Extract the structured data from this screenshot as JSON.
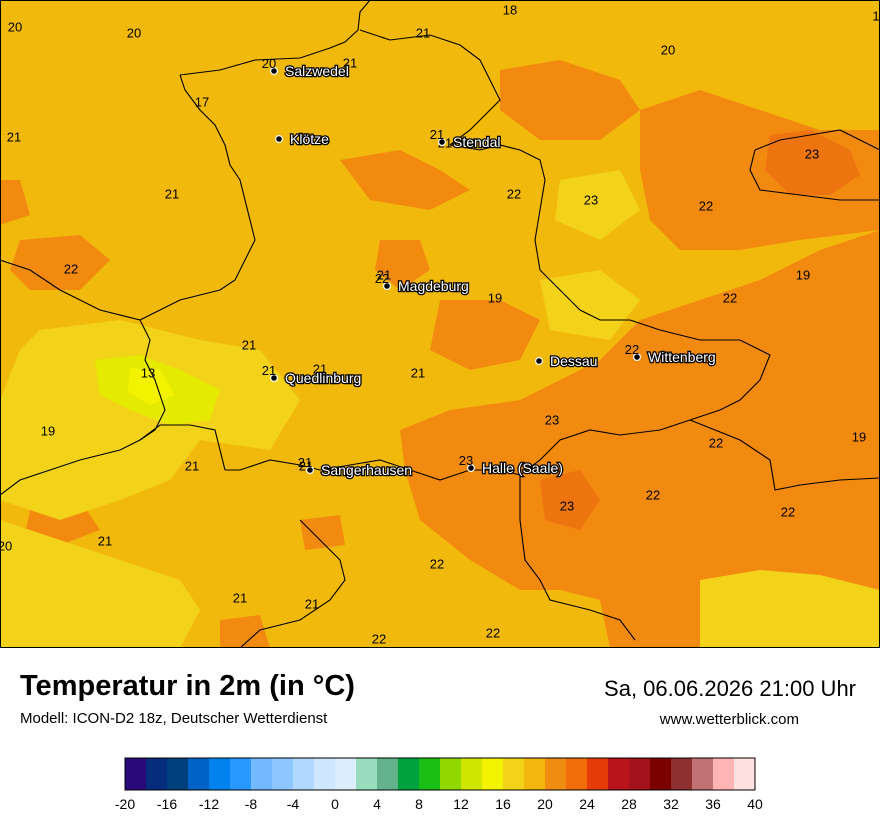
{
  "map": {
    "cities": [
      {
        "name": "Salzwedel",
        "value": "20"
      },
      {
        "name": "Klötze",
        "value": ""
      },
      {
        "name": "Stendal",
        "value": "21"
      },
      {
        "name": "Magdeburg",
        "value": "22"
      },
      {
        "name": "Quedlinburg",
        "value": "21"
      },
      {
        "name": "Dessau",
        "value": ""
      },
      {
        "name": "Wittenberg",
        "value": "22"
      },
      {
        "name": "Sangerhausen",
        "value": "21"
      },
      {
        "name": "Halle (Saale)",
        "value": "23"
      }
    ],
    "values": [
      "20",
      "20",
      "18",
      "21",
      "1",
      "21",
      "20",
      "17",
      "21",
      "21",
      "23",
      "22",
      "23",
      "22",
      "21",
      "22",
      "19",
      "21",
      "22",
      "19",
      "21",
      "21",
      "13",
      "21",
      "19",
      "23",
      "22",
      "19",
      "21",
      "21",
      "22",
      "23",
      "20",
      "21",
      "22",
      "22",
      "21",
      "21",
      "22",
      "22"
    ]
  },
  "footer": {
    "title": "Temperatur in 2m (in °C)",
    "subtitle": "Modell: ICON-D2 18z, Deutscher Wetterdienst",
    "datetime": "Sa, 06.06.2026 21:00 Uhr",
    "website": "www.wetterblick.com"
  },
  "scale": {
    "tick_labels": [
      "-20",
      "-16",
      "-12",
      "-8",
      "-4",
      "0",
      "4",
      "8",
      "12",
      "16",
      "20",
      "24",
      "28",
      "32",
      "36",
      "40"
    ],
    "colors": [
      "#2a0a7a",
      "#062c7e",
      "#003f7d",
      "#0062c6",
      "#0082ef",
      "#2a99ff",
      "#73b9ff",
      "#8ec7ff",
      "#b3d8ff",
      "#cee7ff",
      "#dcedfd",
      "#98dcbe",
      "#63b28b",
      "#00a23f",
      "#19bf14",
      "#90d800",
      "#cfe700",
      "#f3f300",
      "#f2d31a",
      "#f2b60d",
      "#ef8c12",
      "#f06d0a",
      "#e53b09",
      "#b9141b",
      "#a4131b",
      "#7b0000",
      "#8e3030",
      "#c17373",
      "#ffb4b4",
      "#ffe1e1"
    ]
  }
}
